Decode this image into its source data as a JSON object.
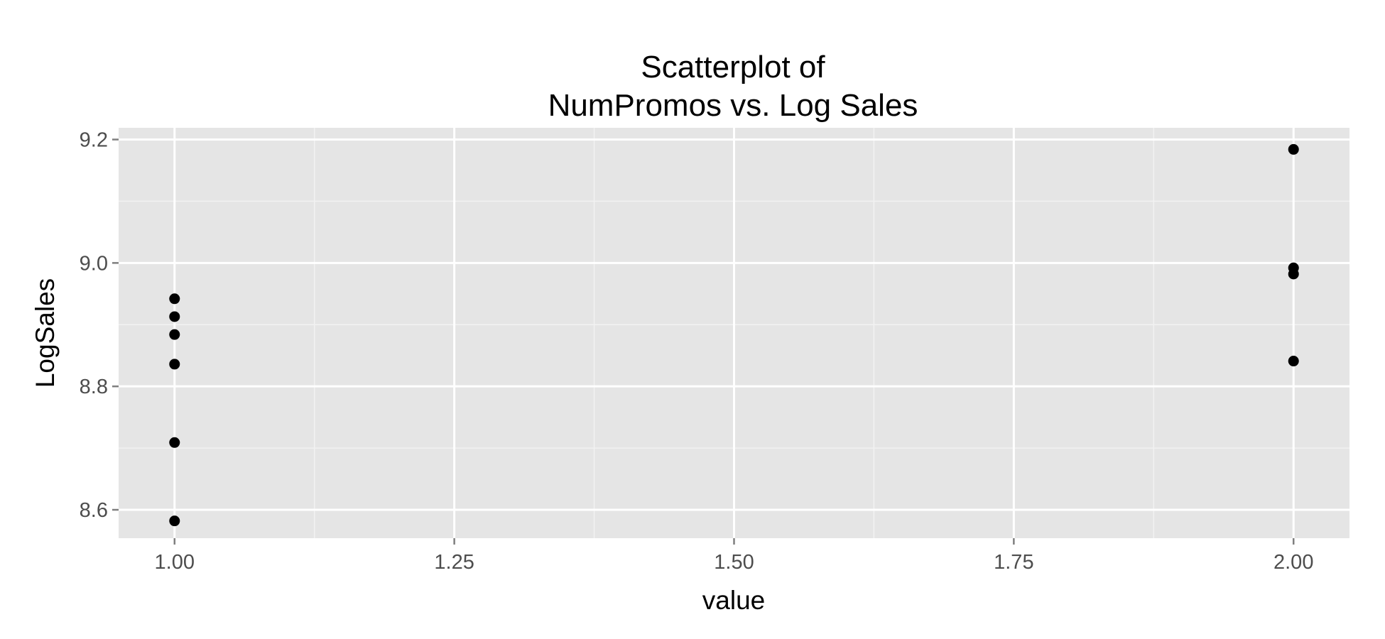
{
  "chart_data": {
    "type": "scatter",
    "title": "Scatterplot of\nNumPromos vs. Log Sales",
    "title_lines": [
      "Scatterplot of",
      "NumPromos vs. Log Sales"
    ],
    "xlabel": "value",
    "ylabel": "LogSales",
    "xlim": [
      0.95,
      2.05
    ],
    "ylim": [
      8.554,
      9.219
    ],
    "x_ticks": [
      1.0,
      1.25,
      1.5,
      1.75,
      2.0
    ],
    "x_tick_labels": [
      "1.00",
      "1.25",
      "1.50",
      "1.75",
      "2.00"
    ],
    "y_ticks": [
      8.6,
      8.8,
      9.0,
      9.2
    ],
    "y_tick_labels": [
      "8.6",
      "8.8",
      "9.0",
      "9.2"
    ],
    "grid": true,
    "points": [
      {
        "x": 1.0,
        "y": 8.942
      },
      {
        "x": 1.0,
        "y": 8.913
      },
      {
        "x": 1.0,
        "y": 8.884
      },
      {
        "x": 1.0,
        "y": 8.836
      },
      {
        "x": 1.0,
        "y": 8.709
      },
      {
        "x": 1.0,
        "y": 8.582
      },
      {
        "x": 2.0,
        "y": 9.184
      },
      {
        "x": 2.0,
        "y": 8.992
      },
      {
        "x": 2.0,
        "y": 8.982
      },
      {
        "x": 2.0,
        "y": 8.841
      }
    ],
    "colors": {
      "panel_background": "#e5e5e5",
      "major_grid": "#ffffff",
      "minor_grid": "#f2f2f2",
      "point": "#000000",
      "tick_label": "#4d4d4d",
      "tick": "#7f7f7f"
    }
  }
}
